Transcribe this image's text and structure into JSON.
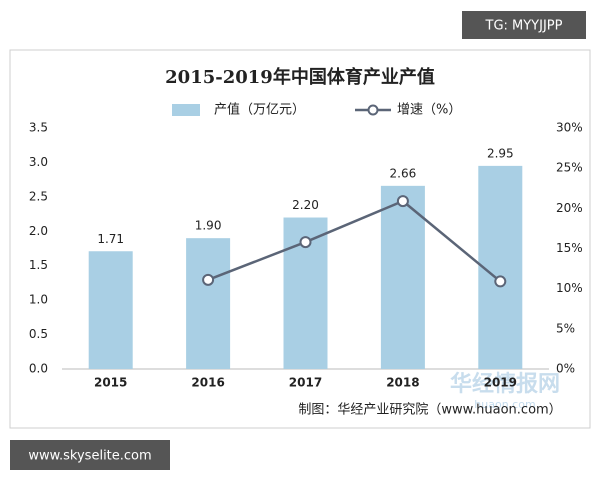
{
  "chart_data": {
    "type": "bar",
    "title": "2015-2019年中国体育产业产值",
    "categories": [
      "2015",
      "2016",
      "2017",
      "2018",
      "2019"
    ],
    "series": [
      {
        "name": "产值（万亿元）",
        "type": "bar",
        "color": "#a9cfe4",
        "values": [
          1.71,
          1.9,
          2.2,
          2.66,
          2.95
        ],
        "value_labels": [
          "1.71",
          "1.90",
          "2.20",
          "2.66",
          "2.95"
        ]
      },
      {
        "name": "增速（%）",
        "type": "line",
        "axis": "y2",
        "color": "#5b6577",
        "values": [
          null,
          11.1,
          15.8,
          20.9,
          10.9
        ]
      }
    ],
    "ylim": [
      0,
      3.5
    ],
    "yticks": [
      {
        "value": 0,
        "label": "0.0"
      },
      0.5,
      {
        "value": 1,
        "label": "1.0"
      },
      1.5,
      {
        "value": 2,
        "label": "2.0"
      },
      2.5,
      {
        "value": 3,
        "label": "3.0"
      },
      3.5
    ],
    "y2lim": [
      0,
      30
    ],
    "y2ticks": [
      {
        "value": 0,
        "label": "0%"
      },
      {
        "value": 5,
        "label": "5%"
      },
      {
        "value": 10,
        "label": "10%"
      },
      {
        "value": 15,
        "label": "15%"
      },
      {
        "value": 20,
        "label": "20%"
      },
      {
        "value": 25,
        "label": "25%"
      },
      {
        "value": 30,
        "label": "30%"
      }
    ],
    "grid": false,
    "source": "制图：华经产业研究院（www.huaon.com）"
  },
  "watermarks": {
    "top": "TG: MYYJJPP",
    "bottom": "www.skyselite.com",
    "logo": "华经情报网",
    "logo_sub": "huaon.com"
  }
}
